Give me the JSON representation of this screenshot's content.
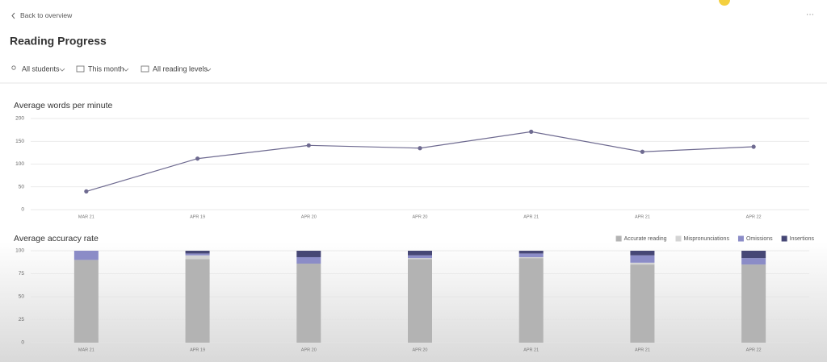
{
  "header": {
    "back": "Back to overview",
    "title": "Reading Progress",
    "filters": [
      "All students",
      "This month",
      "All reading levels"
    ]
  },
  "chart_data": [
    {
      "type": "line",
      "title": "Average words per minute",
      "categories": [
        "MAR 21",
        "APR 19",
        "APR 20",
        "APR 20",
        "APR 21",
        "APR 21",
        "APR 22"
      ],
      "values": [
        40,
        112,
        141,
        135,
        171,
        127,
        138
      ],
      "color": "#6e6a90",
      "ylim": [
        0,
        200
      ],
      "yticks": [
        0,
        50,
        100,
        150,
        200
      ],
      "grid": true
    },
    {
      "type": "stacked-bar",
      "title": "Average accuracy rate",
      "categories": [
        "MAR 21",
        "APR 19",
        "APR 20",
        "APR 20",
        "APR 21",
        "APR 21",
        "APR 22"
      ],
      "series": [
        {
          "name": "Accurate reading",
          "color": "#b3b3b3",
          "values": [
            90,
            91,
            86,
            91,
            92,
            85,
            85
          ]
        },
        {
          "name": "Mispronunciations",
          "color": "#d4d4d4",
          "values": [
            0,
            4,
            0,
            1,
            1,
            2,
            0
          ]
        },
        {
          "name": "Omissions",
          "color": "#8b8cc7",
          "values": [
            10,
            2,
            7,
            3,
            4,
            8,
            7
          ]
        },
        {
          "name": "Insertions",
          "color": "#464775",
          "values": [
            0,
            3,
            7,
            5,
            3,
            5,
            8
          ]
        }
      ],
      "ylim": [
        0,
        100
      ],
      "yticks": [
        0,
        25,
        50,
        75,
        100
      ],
      "grid": true,
      "legend": "top-right"
    }
  ]
}
